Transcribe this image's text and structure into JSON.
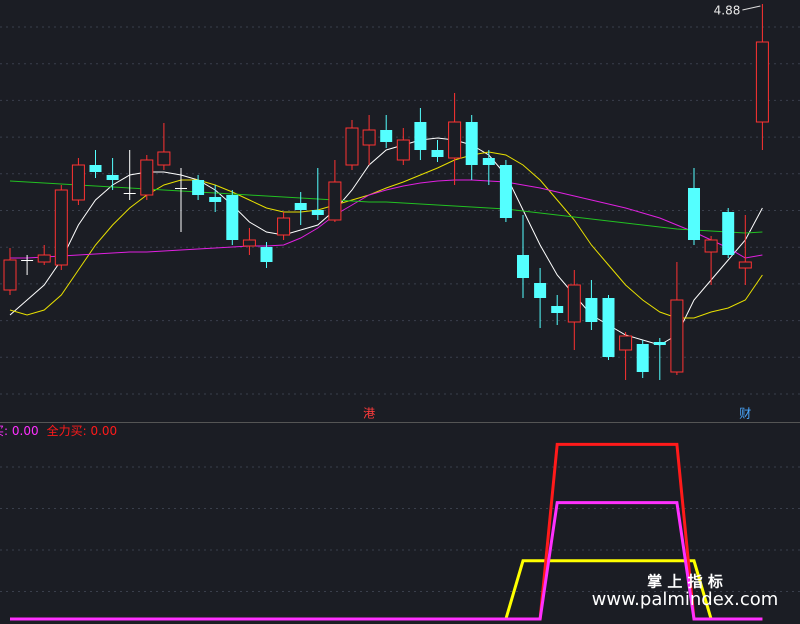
{
  "chart_data": [
    {
      "type": "candlestick",
      "open": [
        3.45,
        3.6,
        3.59,
        3.575,
        3.9,
        4.075,
        4.025,
        3.935,
        3.925,
        4.075,
        3.96,
        4.0,
        3.915,
        3.925,
        3.67,
        3.665,
        3.725,
        3.885,
        3.85,
        3.8,
        4.075,
        4.175,
        4.25,
        4.1,
        4.29,
        4.15,
        4.11,
        4.29,
        4.11,
        4.075,
        3.625,
        3.485,
        3.37,
        3.29,
        3.41,
        3.41,
        3.15,
        3.18,
        3.19,
        3.04,
        3.96,
        3.64,
        3.84,
        3.56,
        4.29
      ],
      "high": [
        3.66,
        3.625,
        3.675,
        3.975,
        4.11,
        4.15,
        4.11,
        4.15,
        4.125,
        4.285,
        4.06,
        4.025,
        3.975,
        3.95,
        3.76,
        3.69,
        3.84,
        3.94,
        4.06,
        4.1,
        4.3,
        4.325,
        4.325,
        4.26,
        4.36,
        4.2,
        4.435,
        4.325,
        4.15,
        4.1,
        3.825,
        3.56,
        3.425,
        3.55,
        3.5,
        3.425,
        3.24,
        3.2,
        3.21,
        3.59,
        4.06,
        3.72,
        3.86,
        3.825,
        4.88
      ],
      "low": [
        3.425,
        3.525,
        3.575,
        3.55,
        3.875,
        4.01,
        3.95,
        3.9,
        3.9,
        4.05,
        3.74,
        3.9,
        3.84,
        3.675,
        3.625,
        3.56,
        3.7,
        3.775,
        3.8,
        3.79,
        4.05,
        4.075,
        4.16,
        4.075,
        4.1,
        4.09,
        3.975,
        4.0,
        3.975,
        3.79,
        3.41,
        3.26,
        3.275,
        3.15,
        3.25,
        3.1,
        3.0,
        3.01,
        3.0,
        3.025,
        3.675,
        3.475,
        3.61,
        3.475,
        4.15
      ],
      "close": [
        3.6,
        3.6,
        3.625,
        3.95,
        4.075,
        4.04,
        4.0,
        3.935,
        4.1,
        4.14,
        3.96,
        3.925,
        3.89,
        3.7,
        3.7,
        3.59,
        3.81,
        3.85,
        3.825,
        3.99,
        4.26,
        4.25,
        4.19,
        4.2,
        4.15,
        4.115,
        4.29,
        4.075,
        4.075,
        3.81,
        3.51,
        3.41,
        3.335,
        3.475,
        3.29,
        3.115,
        3.22,
        3.04,
        3.175,
        3.4,
        3.7,
        3.7,
        3.625,
        3.59,
        4.69
      ],
      "high_value_labels": [
        null,
        null,
        null,
        null,
        null,
        null,
        null,
        null,
        null,
        null,
        null,
        null,
        null,
        null,
        null,
        null,
        null,
        null,
        null,
        null,
        null,
        null,
        null,
        null,
        null,
        null,
        null,
        null,
        null,
        null,
        null,
        null,
        null,
        null,
        null,
        null,
        null,
        null,
        null,
        null,
        null,
        null,
        null,
        null,
        "4.88"
      ],
      "markers": [
        null,
        null,
        null,
        null,
        null,
        null,
        null,
        null,
        null,
        null,
        null,
        null,
        null,
        null,
        null,
        null,
        null,
        null,
        null,
        null,
        null,
        "港",
        null,
        null,
        null,
        null,
        null,
        null,
        null,
        null,
        null,
        null,
        null,
        null,
        null,
        null,
        null,
        null,
        null,
        null,
        null,
        null,
        null,
        "财",
        null
      ],
      "marker_colors": [
        "#ff3b3b",
        "#4aa8ff"
      ],
      "up_color": "#ff3232",
      "down_color": "#54ffff",
      "flat_color": "#ffffff",
      "ylim": [
        2.9,
        4.9
      ],
      "lines": [
        {
          "color": "#ffffff",
          "values": [
            3.325,
            3.4,
            3.475,
            3.6,
            3.775,
            3.9,
            3.975,
            4.025,
            4.04,
            4.04,
            4.025,
            4.0,
            3.95,
            3.875,
            3.79,
            3.74,
            3.725,
            3.75,
            3.775,
            3.85,
            3.95,
            4.075,
            4.15,
            4.175,
            4.2,
            4.21,
            4.2,
            4.175,
            4.125,
            4.025,
            3.85,
            3.675,
            3.525,
            3.425,
            3.325,
            3.275,
            3.225,
            3.2,
            3.175,
            3.225,
            3.4,
            3.5,
            3.6,
            3.7,
            3.86
          ]
        },
        {
          "color": "#e8e000",
          "values": [
            3.35,
            3.325,
            3.35,
            3.425,
            3.55,
            3.675,
            3.775,
            3.86,
            3.925,
            3.975,
            4.0,
            4.0,
            3.975,
            3.94,
            3.9,
            3.86,
            3.84,
            3.84,
            3.85,
            3.875,
            3.9,
            3.925,
            3.96,
            3.99,
            4.025,
            4.06,
            4.1,
            4.125,
            4.14,
            4.125,
            4.075,
            4.0,
            3.9,
            3.8,
            3.675,
            3.575,
            3.475,
            3.4,
            3.34,
            3.31,
            3.31,
            3.34,
            3.36,
            3.4,
            3.525
          ]
        },
        {
          "color": "#e020e0",
          "values": [
            3.61,
            3.61,
            3.615,
            3.62,
            3.625,
            3.63,
            3.635,
            3.64,
            3.64,
            3.645,
            3.65,
            3.655,
            3.66,
            3.665,
            3.67,
            3.67,
            3.675,
            3.71,
            3.76,
            3.825,
            3.875,
            3.925,
            3.95,
            3.97,
            3.985,
            3.995,
            4.0,
            4.0,
            3.995,
            3.99,
            3.975,
            3.96,
            3.94,
            3.92,
            3.9,
            3.88,
            3.86,
            3.835,
            3.81,
            3.775,
            3.74,
            3.7,
            3.66,
            3.61,
            3.625
          ]
        },
        {
          "color": "#22c022",
          "values": [
            3.995,
            3.99,
            3.985,
            3.98,
            3.975,
            3.97,
            3.965,
            3.96,
            3.955,
            3.95,
            3.945,
            3.94,
            3.935,
            3.93,
            3.925,
            3.92,
            3.915,
            3.91,
            3.905,
            3.9,
            3.895,
            3.89,
            3.89,
            3.885,
            3.88,
            3.875,
            3.87,
            3.865,
            3.86,
            3.855,
            3.845,
            3.835,
            3.825,
            3.815,
            3.805,
            3.795,
            3.785,
            3.775,
            3.765,
            3.755,
            3.75,
            3.745,
            3.74,
            3.735,
            3.74
          ]
        }
      ]
    },
    {
      "type": "line",
      "ylim": [
        0,
        100
      ],
      "series": [
        {
          "name": "买:",
          "value_label": "0.00",
          "color": "#ff30ff",
          "values": [
            0,
            0,
            0,
            0,
            0,
            0,
            0,
            0,
            0,
            0,
            0,
            0,
            0,
            0,
            0,
            0,
            0,
            0,
            0,
            0,
            0,
            0,
            0,
            0,
            0,
            0,
            0,
            0,
            0,
            0,
            0,
            0,
            60,
            60,
            60,
            60,
            60,
            60,
            60,
            60,
            0,
            0,
            0,
            0,
            0
          ]
        },
        {
          "name": "全力买:",
          "value_label": "0.00",
          "color": "#ff1a1a",
          "values": [
            0,
            0,
            0,
            0,
            0,
            0,
            0,
            0,
            0,
            0,
            0,
            0,
            0,
            0,
            0,
            0,
            0,
            0,
            0,
            0,
            0,
            0,
            0,
            0,
            0,
            0,
            0,
            0,
            0,
            0,
            0,
            0,
            90,
            90,
            90,
            90,
            90,
            90,
            90,
            90,
            0,
            0,
            0,
            0,
            0
          ]
        },
        {
          "color": "#ffff00",
          "values": [
            0,
            0,
            0,
            0,
            0,
            0,
            0,
            0,
            0,
            0,
            0,
            0,
            0,
            0,
            0,
            0,
            0,
            0,
            0,
            0,
            0,
            0,
            0,
            0,
            0,
            0,
            0,
            0,
            0,
            0,
            30,
            30,
            30,
            30,
            30,
            30,
            30,
            30,
            30,
            30,
            30,
            0,
            0,
            0,
            0
          ]
        }
      ]
    }
  ],
  "watermark": {
    "title": "掌 上 指 标",
    "url": "www.palmindex.com"
  }
}
